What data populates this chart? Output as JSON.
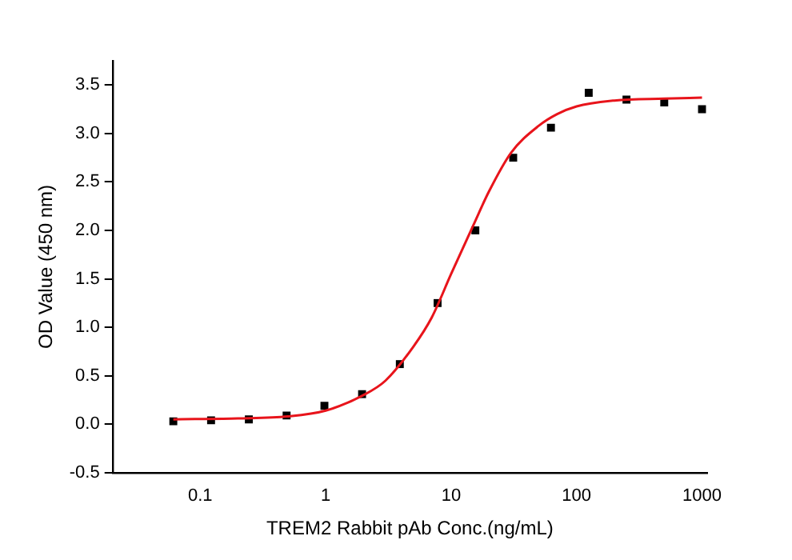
{
  "chart_data": {
    "type": "scatter",
    "xlabel": "TREM2 Rabbit pAb Conc.(ng/mL)",
    "ylabel": "OD Value (450 nm)",
    "log": "x",
    "xlim": [
      0.02,
      1100
    ],
    "xticks": [
      0.1,
      1,
      10,
      100,
      1000
    ],
    "ylim": [
      -0.5,
      3.75
    ],
    "yticks": [
      {
        "value": -0.5,
        "label": "-0.5"
      },
      {
        "value": 0,
        "label": "0.0"
      },
      {
        "value": 0.5,
        "label": "0.5"
      },
      {
        "value": 1,
        "label": "1.0"
      },
      {
        "value": 1.5,
        "label": "1.5"
      },
      {
        "value": 2,
        "label": "2.0"
      },
      {
        "value": 2.5,
        "label": "2.5"
      },
      {
        "value": 3,
        "label": "3.0"
      },
      {
        "value": 3.5,
        "label": "3.5"
      }
    ],
    "grid": false,
    "legend": false,
    "series": [
      {
        "type": "line",
        "color": "#e8141b",
        "marker": "none",
        "line_style": "solid",
        "x": [
          0.061,
          0.2,
          0.5,
          1,
          2,
          3,
          5,
          7,
          10,
          15,
          20,
          30,
          50,
          70,
          100,
          200,
          500,
          1000
        ],
        "values": [
          0.05,
          0.06,
          0.08,
          0.14,
          0.3,
          0.45,
          0.8,
          1.1,
          1.55,
          2.05,
          2.4,
          2.8,
          3.08,
          3.2,
          3.28,
          3.34,
          3.36,
          3.37
        ]
      },
      {
        "type": "scatter",
        "color": "#000000",
        "marker": "square",
        "x": [
          0.061,
          0.122,
          0.244,
          0.488,
          0.977,
          1.95,
          3.9,
          7.8,
          15.6,
          31.25,
          62.5,
          125,
          250,
          500,
          1000
        ],
        "values": [
          0.03,
          0.04,
          0.05,
          0.09,
          0.19,
          0.31,
          0.62,
          1.25,
          2.0,
          2.75,
          3.06,
          3.42,
          3.35,
          3.32,
          3.25
        ]
      }
    ]
  }
}
